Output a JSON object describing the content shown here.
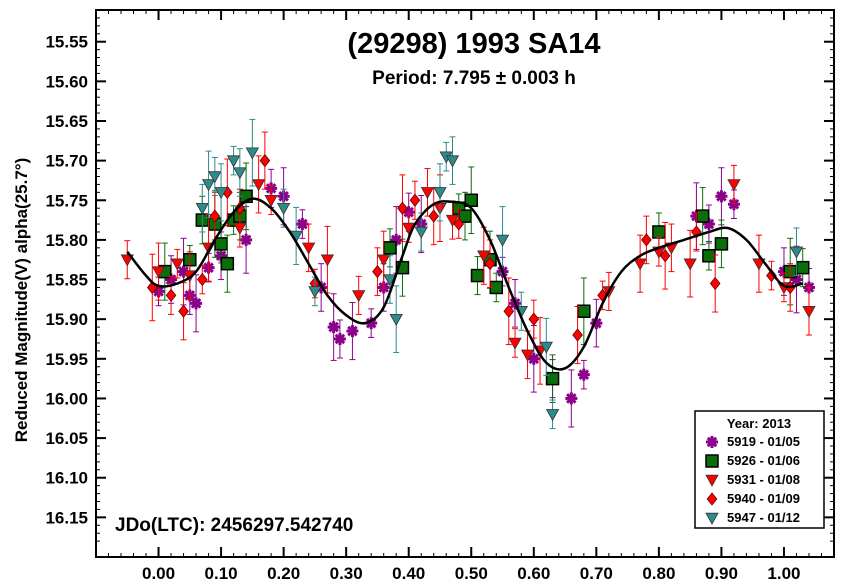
{
  "chart_data": {
    "type": "scatter",
    "title": "(29298) 1993 SA14",
    "subtitle": "Period: 7.795 ± 0.003 h",
    "ylabel": "Reduced Magnitude(V) alpha(25.7°)",
    "xlabel": "",
    "annotation": "JDo(LTC): 2456297.542740",
    "xlim": [
      -0.1,
      1.08
    ],
    "ylim": [
      16.2,
      15.51
    ],
    "y_inverted": true,
    "x_ticks": [
      "0.00",
      "0.10",
      "0.20",
      "0.30",
      "0.40",
      "0.50",
      "0.60",
      "0.70",
      "0.80",
      "0.90",
      "1.00"
    ],
    "y_ticks": [
      "15.55",
      "15.60",
      "15.65",
      "15.70",
      "15.75",
      "15.80",
      "15.85",
      "15.90",
      "15.95",
      "16.00",
      "16.05",
      "16.10",
      "16.15"
    ],
    "legend": {
      "title": "Year: 2013",
      "placement": "bottom-right",
      "entries": [
        {
          "label": "5919 - 01/05",
          "marker": "asterisk",
          "color": "#8b008b"
        },
        {
          "label": "5926 - 01/06",
          "marker": "square",
          "color": "#0a6e0a"
        },
        {
          "label": "5931 - 01/08",
          "marker": "triangle-down",
          "color": "#ff0000"
        },
        {
          "label": "5940 - 01/09",
          "marker": "diamond",
          "color": "#ff0000"
        },
        {
          "label": "5947 - 01/12",
          "marker": "triangle-down",
          "color": "#2e8b8b"
        }
      ]
    },
    "fit_curve": {
      "color": "#000000",
      "points": [
        [
          -0.05,
          15.815
        ],
        [
          -0.02,
          15.845
        ],
        [
          0.0,
          15.858
        ],
        [
          0.03,
          15.855
        ],
        [
          0.06,
          15.84
        ],
        [
          0.09,
          15.8
        ],
        [
          0.12,
          15.765
        ],
        [
          0.15,
          15.748
        ],
        [
          0.18,
          15.76
        ],
        [
          0.21,
          15.79
        ],
        [
          0.24,
          15.83
        ],
        [
          0.27,
          15.87
        ],
        [
          0.3,
          15.895
        ],
        [
          0.33,
          15.905
        ],
        [
          0.36,
          15.885
        ],
        [
          0.39,
          15.82
        ],
        [
          0.41,
          15.78
        ],
        [
          0.44,
          15.755
        ],
        [
          0.47,
          15.752
        ],
        [
          0.5,
          15.76
        ],
        [
          0.53,
          15.8
        ],
        [
          0.56,
          15.86
        ],
        [
          0.59,
          15.915
        ],
        [
          0.62,
          15.955
        ],
        [
          0.65,
          15.962
        ],
        [
          0.68,
          15.935
        ],
        [
          0.71,
          15.88
        ],
        [
          0.74,
          15.84
        ],
        [
          0.77,
          15.82
        ],
        [
          0.8,
          15.81
        ],
        [
          0.84,
          15.8
        ],
        [
          0.88,
          15.79
        ],
        [
          0.91,
          15.785
        ],
        [
          0.94,
          15.8
        ],
        [
          0.97,
          15.83
        ],
        [
          1.0,
          15.858
        ],
        [
          1.03,
          15.855
        ]
      ]
    },
    "series": [
      {
        "name": "5919 - 01/05",
        "marker": "asterisk",
        "color": "#8b008b",
        "points": [
          [
            0.0,
            15.865
          ],
          [
            0.02,
            15.85
          ],
          [
            0.04,
            15.84
          ],
          [
            0.05,
            15.87
          ],
          [
            0.06,
            15.88
          ],
          [
            0.08,
            15.835
          ],
          [
            0.1,
            15.82
          ],
          [
            0.14,
            15.8
          ],
          [
            0.18,
            15.735
          ],
          [
            0.2,
            15.745
          ],
          [
            0.23,
            15.78
          ],
          [
            0.26,
            15.86
          ],
          [
            0.28,
            15.91
          ],
          [
            0.29,
            15.925
          ],
          [
            0.31,
            15.915
          ],
          [
            0.34,
            15.905
          ],
          [
            0.36,
            15.86
          ],
          [
            0.38,
            15.8
          ],
          [
            0.4,
            15.765
          ],
          [
            0.42,
            15.78
          ],
          [
            0.55,
            15.84
          ],
          [
            0.57,
            15.88
          ],
          [
            0.6,
            15.95
          ],
          [
            0.63,
            15.975
          ],
          [
            0.66,
            16.0
          ],
          [
            0.68,
            15.97
          ],
          [
            0.7,
            15.905
          ],
          [
            0.86,
            15.77
          ],
          [
            0.88,
            15.78
          ],
          [
            0.9,
            15.745
          ],
          [
            0.92,
            15.755
          ],
          [
            1.0,
            15.84
          ],
          [
            1.02,
            15.85
          ],
          [
            1.04,
            15.86
          ]
        ]
      },
      {
        "name": "5926 - 01/06",
        "marker": "square",
        "color": "#0a6e0a",
        "points": [
          [
            0.01,
            15.84
          ],
          [
            0.05,
            15.825
          ],
          [
            0.07,
            15.775
          ],
          [
            0.09,
            15.78
          ],
          [
            0.1,
            15.805
          ],
          [
            0.11,
            15.83
          ],
          [
            0.12,
            15.775
          ],
          [
            0.13,
            15.77
          ],
          [
            0.14,
            15.745
          ],
          [
            0.37,
            15.81
          ],
          [
            0.39,
            15.835
          ],
          [
            0.48,
            15.76
          ],
          [
            0.49,
            15.77
          ],
          [
            0.5,
            15.75
          ],
          [
            0.51,
            15.845
          ],
          [
            0.53,
            15.825
          ],
          [
            0.54,
            15.86
          ],
          [
            0.63,
            15.975
          ],
          [
            0.68,
            15.89
          ],
          [
            0.8,
            15.79
          ],
          [
            0.87,
            15.77
          ],
          [
            0.88,
            15.82
          ],
          [
            0.9,
            15.805
          ],
          [
            1.01,
            15.84
          ],
          [
            1.03,
            15.835
          ]
        ]
      },
      {
        "name": "5931 - 01/08",
        "marker": "triangle-down",
        "color": "#ff0000",
        "points": [
          [
            -0.05,
            15.825
          ],
          [
            0.0,
            15.84
          ],
          [
            0.03,
            15.83
          ],
          [
            0.05,
            15.845
          ],
          [
            0.08,
            15.81
          ],
          [
            0.13,
            15.785
          ],
          [
            0.16,
            15.73
          ],
          [
            0.18,
            15.75
          ],
          [
            0.24,
            15.81
          ],
          [
            0.27,
            15.825
          ],
          [
            0.32,
            15.87
          ],
          [
            0.36,
            15.825
          ],
          [
            0.4,
            15.785
          ],
          [
            0.43,
            15.74
          ],
          [
            0.45,
            15.76
          ],
          [
            0.47,
            15.775
          ],
          [
            0.52,
            15.82
          ],
          [
            0.57,
            15.93
          ],
          [
            0.59,
            15.945
          ],
          [
            0.61,
            15.94
          ],
          [
            0.72,
            15.865
          ],
          [
            0.77,
            15.83
          ],
          [
            0.8,
            15.815
          ],
          [
            0.82,
            15.81
          ],
          [
            0.85,
            15.83
          ],
          [
            0.92,
            15.73
          ],
          [
            0.96,
            15.83
          ],
          [
            1.0,
            15.86
          ],
          [
            1.04,
            15.89
          ]
        ]
      },
      {
        "name": "5940 - 01/09",
        "marker": "diamond",
        "color": "#ff0000",
        "points": [
          [
            -0.01,
            15.86
          ],
          [
            0.02,
            15.87
          ],
          [
            0.04,
            15.89
          ],
          [
            0.07,
            15.85
          ],
          [
            0.09,
            15.77
          ],
          [
            0.11,
            15.74
          ],
          [
            0.13,
            15.76
          ],
          [
            0.17,
            15.7
          ],
          [
            0.25,
            15.855
          ],
          [
            0.35,
            15.84
          ],
          [
            0.39,
            15.76
          ],
          [
            0.41,
            15.75
          ],
          [
            0.44,
            15.77
          ],
          [
            0.48,
            15.78
          ],
          [
            0.53,
            15.83
          ],
          [
            0.56,
            15.89
          ],
          [
            0.6,
            15.9
          ],
          [
            0.67,
            15.92
          ],
          [
            0.71,
            15.87
          ],
          [
            0.78,
            15.8
          ],
          [
            0.81,
            15.82
          ],
          [
            0.86,
            15.79
          ],
          [
            0.89,
            15.855
          ],
          [
            0.98,
            15.845
          ],
          [
            1.01,
            15.86
          ]
        ]
      },
      {
        "name": "5947 - 01/12",
        "marker": "triangle-down",
        "color": "#2e8b8b",
        "points": [
          [
            0.07,
            15.76
          ],
          [
            0.08,
            15.73
          ],
          [
            0.09,
            15.72
          ],
          [
            0.1,
            15.74
          ],
          [
            0.12,
            15.7
          ],
          [
            0.13,
            15.715
          ],
          [
            0.15,
            15.69
          ],
          [
            0.2,
            15.76
          ],
          [
            0.22,
            15.795
          ],
          [
            0.25,
            15.865
          ],
          [
            0.37,
            15.85
          ],
          [
            0.38,
            15.9
          ],
          [
            0.42,
            15.79
          ],
          [
            0.45,
            15.74
          ],
          [
            0.46,
            15.695
          ],
          [
            0.47,
            15.7
          ],
          [
            0.55,
            15.8
          ],
          [
            0.58,
            15.89
          ],
          [
            0.62,
            15.935
          ],
          [
            0.63,
            16.02
          ],
          [
            1.02,
            15.815
          ]
        ]
      }
    ]
  }
}
